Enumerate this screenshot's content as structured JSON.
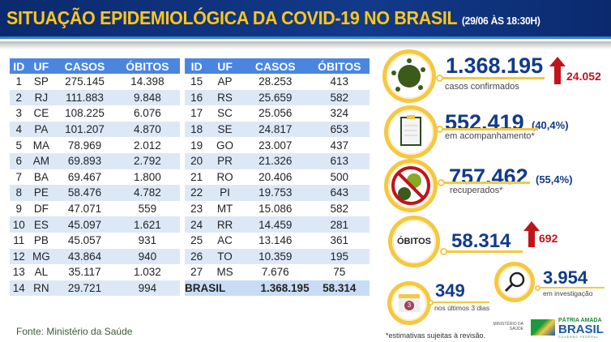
{
  "header": {
    "title": "SITUAÇÃO EPIDEMIOLÓGICA DA COVID-19 NO BRASIL",
    "date": "(29/06 ÀS 18:30H)"
  },
  "table": {
    "columns": [
      "ID",
      "UF",
      "CASOS",
      "ÓBITOS"
    ],
    "left": [
      [
        "1",
        "SP",
        "275.145",
        "14.398"
      ],
      [
        "2",
        "RJ",
        "111.883",
        "9.848"
      ],
      [
        "3",
        "CE",
        "108.225",
        "6.076"
      ],
      [
        "4",
        "PA",
        "101.207",
        "4.870"
      ],
      [
        "5",
        "MA",
        "78.969",
        "2.012"
      ],
      [
        "6",
        "AM",
        "69.893",
        "2.792"
      ],
      [
        "7",
        "BA",
        "69.467",
        "1.800"
      ],
      [
        "8",
        "PE",
        "58.476",
        "4.782"
      ],
      [
        "9",
        "DF",
        "47.071",
        "559"
      ],
      [
        "10",
        "ES",
        "45.097",
        "1.621"
      ],
      [
        "11",
        "PB",
        "45.057",
        "931"
      ],
      [
        "12",
        "MG",
        "43.864",
        "940"
      ],
      [
        "13",
        "AL",
        "35.117",
        "1.032"
      ],
      [
        "14",
        "RN",
        "29.721",
        "994"
      ]
    ],
    "right": [
      [
        "15",
        "AP",
        "28.253",
        "413"
      ],
      [
        "16",
        "RS",
        "25.659",
        "582"
      ],
      [
        "17",
        "SC",
        "25.056",
        "324"
      ],
      [
        "18",
        "SE",
        "24.817",
        "653"
      ],
      [
        "19",
        "GO",
        "23.007",
        "437"
      ],
      [
        "20",
        "PR",
        "21.326",
        "613"
      ],
      [
        "21",
        "RO",
        "20.406",
        "500"
      ],
      [
        "22",
        "PI",
        "19.753",
        "643"
      ],
      [
        "23",
        "MT",
        "15.086",
        "582"
      ],
      [
        "24",
        "RR",
        "14.459",
        "281"
      ],
      [
        "25",
        "AC",
        "13.146",
        "361"
      ],
      [
        "26",
        "TO",
        "10.359",
        "195"
      ],
      [
        "27",
        "MS",
        "7.676",
        "75"
      ]
    ],
    "total": {
      "label": "BRASIL",
      "casos": "1.368.195",
      "obitos": "58.314"
    }
  },
  "source": "Fonte: Ministério da Saúde",
  "stats": {
    "confirmed": {
      "value": "1.368.195",
      "label": "casos confirmados",
      "increase": "24.052",
      "icon": "virus-icon"
    },
    "monitoring": {
      "value": "552.419",
      "pct": "(40,4%)",
      "label": "em acompanhamento*",
      "icon": "clipboard-icon"
    },
    "recovered": {
      "value": "757.462",
      "pct": "(55,4%)",
      "label": "recuperados*",
      "icon": "no-virus-icon"
    },
    "deaths": {
      "badge": "ÓBITOS",
      "value": "58.314",
      "increase": "692"
    },
    "investigation": {
      "value": "3.954",
      "label": "em investigação",
      "icon": "magnifier-icon"
    },
    "last3": {
      "value": "349",
      "label": "nos últimos 3 dias",
      "calendar_num": "3",
      "icon": "calendar-icon"
    }
  },
  "footnote": "*estimativas sujeitas à revisão.",
  "logos": {
    "ministry": "MINISTÉRIO DA SAÚDE",
    "gov1": "PÁTRIA AMADA",
    "gov2": "BRASIL",
    "gov3": "GOVERNO FEDERAL"
  },
  "colors": {
    "navy": "#123a8a",
    "yellow": "#ffc61a",
    "header_blue": "#4a86e0",
    "red": "#c0131c"
  }
}
